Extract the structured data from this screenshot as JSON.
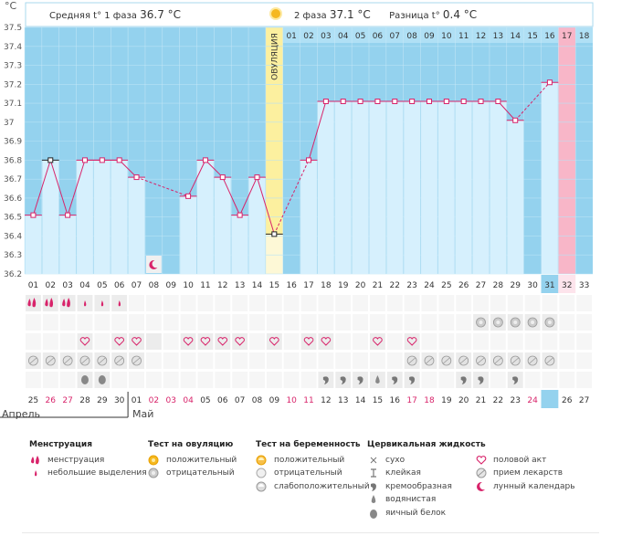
{
  "header": {
    "unit": "°С",
    "phase1_label": "Средняя t° 1 фаза",
    "phase1_value": "36.7 °С",
    "phase2_label": "2 фаза",
    "phase2_value": "37.1 °С",
    "diff_label": "Разница t°",
    "diff_value": "0.4 °С"
  },
  "ovulation_label": "ОВУЛЯЦИЯ",
  "months": {
    "april": "Апрель",
    "may": "Май"
  },
  "colors": {
    "plot_bg": "#94d2ee",
    "bar": "#d6f0fd",
    "line": "#d8236a",
    "ovulation": "#fcf09f",
    "period": "#f8b6c8",
    "today": "#94d2ee",
    "red_date": "#d8236a"
  },
  "chart_data": {
    "type": "line",
    "ylim": [
      36.2,
      37.5
    ],
    "yticks": [
      "37.5",
      "37.4",
      "37.3",
      "37.2",
      "37.1",
      "37",
      "36.9",
      "36.8",
      "36.7",
      "36.6",
      "36.5",
      "36.4",
      "36.3",
      "36.2"
    ],
    "cycle_days": [
      "01",
      "02",
      "03",
      "04",
      "05",
      "06",
      "07",
      "08",
      "09",
      "10",
      "11",
      "12",
      "13",
      "14",
      "15",
      "16",
      "17",
      "18",
      "19",
      "20",
      "21",
      "22",
      "23",
      "24",
      "25",
      "26",
      "27",
      "28",
      "29",
      "30",
      "31",
      "32",
      "33"
    ],
    "top_days": [
      "01",
      "02",
      "03",
      "04",
      "05",
      "06",
      "07",
      "08",
      "09",
      "10",
      "11",
      "12",
      "13",
      "14",
      "15",
      "16",
      "17",
      "18"
    ],
    "dates": [
      "25",
      "26",
      "27",
      "28",
      "29",
      "30",
      "01",
      "02",
      "03",
      "04",
      "05",
      "06",
      "07",
      "08",
      "09",
      "10",
      "11",
      "12",
      "13",
      "14",
      "15",
      "16",
      "17",
      "18",
      "19",
      "20",
      "21",
      "22",
      "23",
      "24",
      "25",
      "26",
      "27"
    ],
    "red_dates": [
      "26",
      "27",
      "02",
      "03",
      "04",
      "10",
      "11",
      "17",
      "18",
      "24"
    ],
    "temps": [
      36.51,
      36.8,
      36.51,
      36.8,
      36.8,
      36.8,
      36.71,
      null,
      null,
      36.61,
      36.8,
      36.71,
      36.51,
      36.71,
      36.41,
      null,
      36.8,
      37.11,
      37.11,
      37.11,
      37.11,
      37.11,
      37.11,
      37.11,
      37.11,
      37.11,
      37.11,
      37.11,
      37.01,
      null,
      37.21,
      null,
      null
    ],
    "ovulation_day": 15,
    "period_future_day": 32,
    "today_day": 31,
    "missing_days": [
      8,
      9,
      16,
      30,
      32,
      33
    ]
  },
  "rows": {
    "menstruation": {
      "1": "heavy",
      "2": "heavy",
      "3": "heavy",
      "4": "light",
      "5": "light",
      "6": "light"
    },
    "ovulation_test": {
      "27": "negative",
      "28": "negative",
      "29": "negative",
      "30": "negative",
      "31": "negative"
    },
    "sex": [
      4,
      6,
      7,
      10,
      11,
      12,
      13,
      15,
      17,
      18,
      21,
      23
    ],
    "lunar": [
      8
    ],
    "medicine": [
      1,
      2,
      3,
      4,
      5,
      6,
      7,
      23,
      24,
      25,
      26,
      27,
      28,
      29,
      30,
      31
    ],
    "cervical": {
      "4": "egg-white",
      "5": "egg-white",
      "18": "creamy",
      "19": "creamy",
      "20": "creamy",
      "21": "watery",
      "22": "creamy",
      "23": "creamy",
      "26": "creamy",
      "27": "creamy",
      "29": "creamy"
    }
  },
  "legend": {
    "menstruation": {
      "title": "Менструация",
      "items": [
        "менструация",
        "небольшие выделения"
      ]
    },
    "ovulation_test": {
      "title": "Тест на овуляцию",
      "items": [
        "положительный",
        "отрицательный"
      ]
    },
    "pregnancy_test": {
      "title": "Тест на беременность",
      "items": [
        "положительный",
        "отрицательный",
        "слабоположительный"
      ]
    },
    "cervical": {
      "title": "Цервикальная жидкость",
      "items": [
        "сухо",
        "клейкая",
        "кремообразная",
        "водянистая",
        "яичный белок"
      ]
    },
    "other": {
      "items": [
        "половой акт",
        "прием лекарств",
        "лунный календарь"
      ]
    }
  }
}
